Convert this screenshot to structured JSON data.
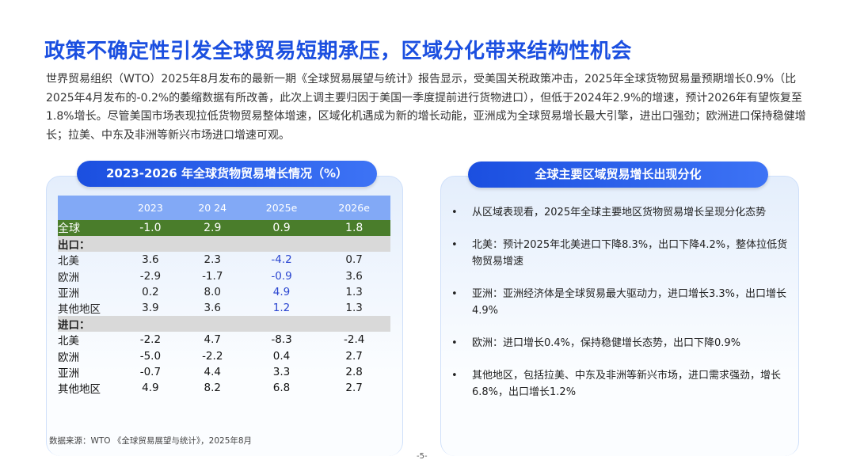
{
  "title": "政策不确定性引发全球贸易短期承压，区域分化带来结构性机会",
  "intro": "世界贸易组织（WTO）2025年8月发布的最新一期《全球贸易展望与统计》报告显示，受美国关税政策冲击，2025年全球货物贸易量预期增长0.9%（比2025年4月发布的-0.2%的萎缩数据有所改善，此次上调主要归因于美国一季度提前进行货物进口），但低于2024年2.9%的增速，预计2026年有望恢复至1.8%增长。尽管美国市场表现拉低货物贸易整体增速，区域化机遇成为新的增长动能，亚洲成为全球贸易增长最大引擎，进出口强劲；欧洲进口保持稳健增长；拉美、中东及非洲等新兴市场进口增速可观。",
  "left": {
    "header": "2023-2026 年全球货物贸易增长情况（%）",
    "columns": [
      "",
      "2023",
      "20 24",
      "2025e",
      "2026e"
    ],
    "global": {
      "label": "全球",
      "values": [
        "-1.0",
        "2.9",
        "0.9",
        "1.8"
      ]
    },
    "export": {
      "label": "出口：",
      "rows": [
        {
          "label": "北美",
          "values": [
            "3.6",
            "2.3",
            "-4.2",
            "0.7"
          ]
        },
        {
          "label": "欧洲",
          "values": [
            "-2.9",
            "-1.7",
            "-0.9",
            "3.6"
          ]
        },
        {
          "label": "亚洲",
          "values": [
            "0.2",
            "8.0",
            "4.9",
            "1.3"
          ]
        },
        {
          "label": "其他地区",
          "values": [
            "3.9",
            "3.6",
            "1.2",
            "1.3"
          ]
        }
      ]
    },
    "import": {
      "label": "进口：",
      "rows": [
        {
          "label": "北美",
          "values": [
            "-2.2",
            "4.7",
            "-8.3",
            "-2.4"
          ]
        },
        {
          "label": "欧洲",
          "values": [
            "-5.0",
            "-2.2",
            "0.4",
            "2.7"
          ]
        },
        {
          "label": "亚洲",
          "values": [
            "-0.7",
            "4.4",
            "3.3",
            "2.8"
          ]
        },
        {
          "label": "其他地区",
          "values": [
            "4.9",
            "8.2",
            "6.8",
            "2.7"
          ]
        }
      ]
    },
    "source": "数据来源：WTO 《全球贸易展望与统计》，2025年8月"
  },
  "right": {
    "header": "全球主要区域贸易增长出现分化",
    "bullets": [
      "从区域表现看，2025年全球主要地区货物贸易增长呈现分化态势",
      "北美：预计2025年北美进口下降8.3%，出口下降4.2%，整体拉低货物贸易增速",
      "亚洲：亚洲经济体是全球贸易最大驱动力，进口增长3.3%，出口增长4.9%",
      "欧洲：进口增长0.4%，保持稳健增长态势，出口下降0.9%",
      "其他地区，包括拉美、中东及非洲等新兴市场，进口需求强劲，增长6.8%，出口增长1.2%"
    ]
  },
  "page": "-5-"
}
